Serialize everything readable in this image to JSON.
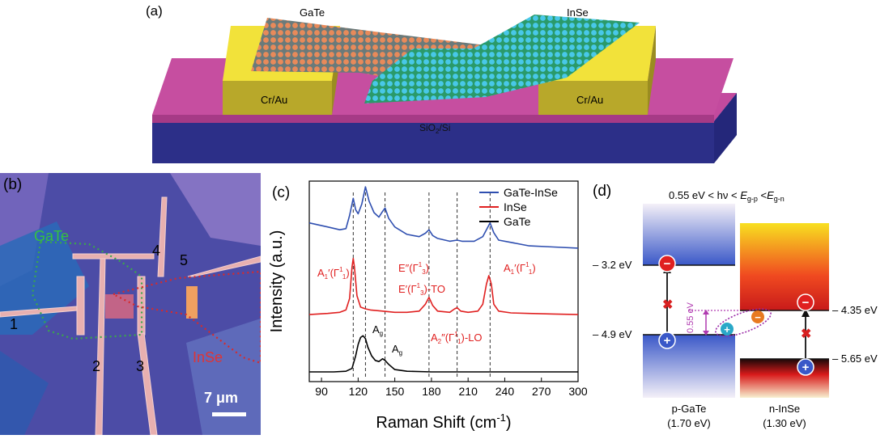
{
  "panel_a": {
    "label": "(a)",
    "gate_label": "GaTe",
    "inse_label": "InSe",
    "contact_left": "Cr/Au",
    "contact_right": "Cr/Au",
    "substrate": "SiO",
    "substrate_sub": "2",
    "substrate_tail": "/Si",
    "colors": {
      "substrate_top": "#c04a9a",
      "substrate_bottom": "#2a3a8c",
      "contact": "#e8d020",
      "gate_atoms": "#e07a4a",
      "inse_atoms": "#3ab8d8"
    }
  },
  "panel_b": {
    "label": "(b)",
    "gate_label": "GaTe",
    "inse_label": "InSe",
    "electrodes": [
      "1",
      "2",
      "3",
      "4",
      "5"
    ],
    "scale": "7 μm"
  },
  "chart_data": {
    "type": "line",
    "label": "(c)",
    "xlabel": "Raman Shift (cm",
    "xlabel_sup": "-1",
    "xlabel_tail": ")",
    "ylabel": "Intensity (a.u.)",
    "xlim": [
      80,
      300
    ],
    "xticks": [
      90,
      120,
      150,
      180,
      210,
      240,
      270,
      300
    ],
    "dashed_lines": [
      116,
      126,
      142,
      178,
      201,
      228
    ],
    "series": [
      {
        "name": "GaTe-InSe",
        "color": "#2f4fb0",
        "offset": 2.0,
        "x": [
          80,
          95,
          105,
          110,
          113,
          116,
          118,
          120,
          123,
          126,
          129,
          133,
          137,
          140,
          142,
          145,
          150,
          160,
          170,
          175,
          178,
          181,
          185,
          195,
          201,
          205,
          215,
          222,
          225,
          228,
          231,
          235,
          245,
          260,
          280,
          300
        ],
        "y": [
          0.62,
          0.55,
          0.5,
          0.52,
          0.75,
          1.05,
          0.85,
          0.78,
          0.95,
          1.25,
          1.0,
          0.8,
          0.72,
          0.82,
          0.88,
          0.7,
          0.55,
          0.42,
          0.38,
          0.44,
          0.5,
          0.4,
          0.35,
          0.3,
          0.32,
          0.3,
          0.3,
          0.38,
          0.5,
          0.62,
          0.45,
          0.32,
          0.28,
          0.22,
          0.2,
          0.18
        ]
      },
      {
        "name": "InSe",
        "color": "#e02020",
        "offset": 1.0,
        "x": [
          80,
          95,
          105,
          110,
          113,
          115,
          116,
          117,
          119,
          122,
          126,
          130,
          140,
          150,
          160,
          170,
          175,
          178,
          181,
          185,
          195,
          199,
          201,
          204,
          210,
          218,
          222,
          225,
          227,
          229,
          231,
          235,
          245,
          260,
          280,
          300
        ],
        "y": [
          0.02,
          0.04,
          0.06,
          0.1,
          0.3,
          0.85,
          1.0,
          0.85,
          0.35,
          0.15,
          0.12,
          0.1,
          0.08,
          0.06,
          0.06,
          0.08,
          0.2,
          0.32,
          0.18,
          0.08,
          0.06,
          0.12,
          0.14,
          0.08,
          0.06,
          0.08,
          0.2,
          0.55,
          0.7,
          0.55,
          0.2,
          0.08,
          0.05,
          0.04,
          0.03,
          0.02
        ]
      },
      {
        "name": "GaTe",
        "color": "#000000",
        "offset": 0.0,
        "x": [
          80,
          100,
          110,
          115,
          118,
          120,
          122,
          124,
          126,
          128,
          131,
          134,
          137,
          140,
          142,
          145,
          150,
          160,
          180,
          200,
          240,
          300
        ],
        "y": [
          0.02,
          0.02,
          0.03,
          0.08,
          0.3,
          0.5,
          0.62,
          0.65,
          0.6,
          0.45,
          0.3,
          0.22,
          0.2,
          0.25,
          0.22,
          0.15,
          0.06,
          0.03,
          0.02,
          0.02,
          0.02,
          0.02
        ]
      }
    ],
    "annotations": {
      "a1_left": "A",
      "a1_left_sub": "1",
      "a1_left_rest": "′(Γ",
      "a1_left_sup": "1",
      "a1_left_sub2": "1",
      "a1_left_end": ")",
      "e2": "E″(Γ",
      "e2_sup": "1",
      "e2_sub": "3",
      "e2_end": ")",
      "e1": "E′(Γ",
      "e1_sup": "1",
      "e1_sub": "3",
      "e1_end": ")-TO",
      "a1_right": "A",
      "a1_right_sub": "1",
      "a1_right_rest": "′(Γ",
      "a1_right_sup": "1",
      "a1_right_sub2": "1",
      "a1_right_end": ")",
      "a2": "A",
      "a2_sub": "2",
      "a2_rest": "″(Γ",
      "a2_sup": "1",
      "a2_sub2": "1",
      "a2_end": ")-LO",
      "ag1": "A",
      "ag1_sub": "g",
      "ag2": "A",
      "ag2_sub": "g"
    }
  },
  "panel_d": {
    "label": "(d)",
    "condition_prefix": "0.55 eV < hν < ",
    "condition_e1": "E",
    "condition_e1_sub": "g-p",
    "condition_mid": " <",
    "condition_e2": "E",
    "condition_e2_sub": "g-n",
    "levels": {
      "gate_cb": "3.2 eV",
      "gate_vb": "4.9 eV",
      "inse_cb": "4.35 eV",
      "inse_vb": "5.65 eV"
    },
    "offset_label": "0.55 eV",
    "gate_name": "p-GaTe",
    "gate_gap": "(1.70 eV)",
    "inse_name": "n-InSe",
    "inse_gap": "(1.30 eV)",
    "electron_sign": "−",
    "hole_sign": "+"
  }
}
